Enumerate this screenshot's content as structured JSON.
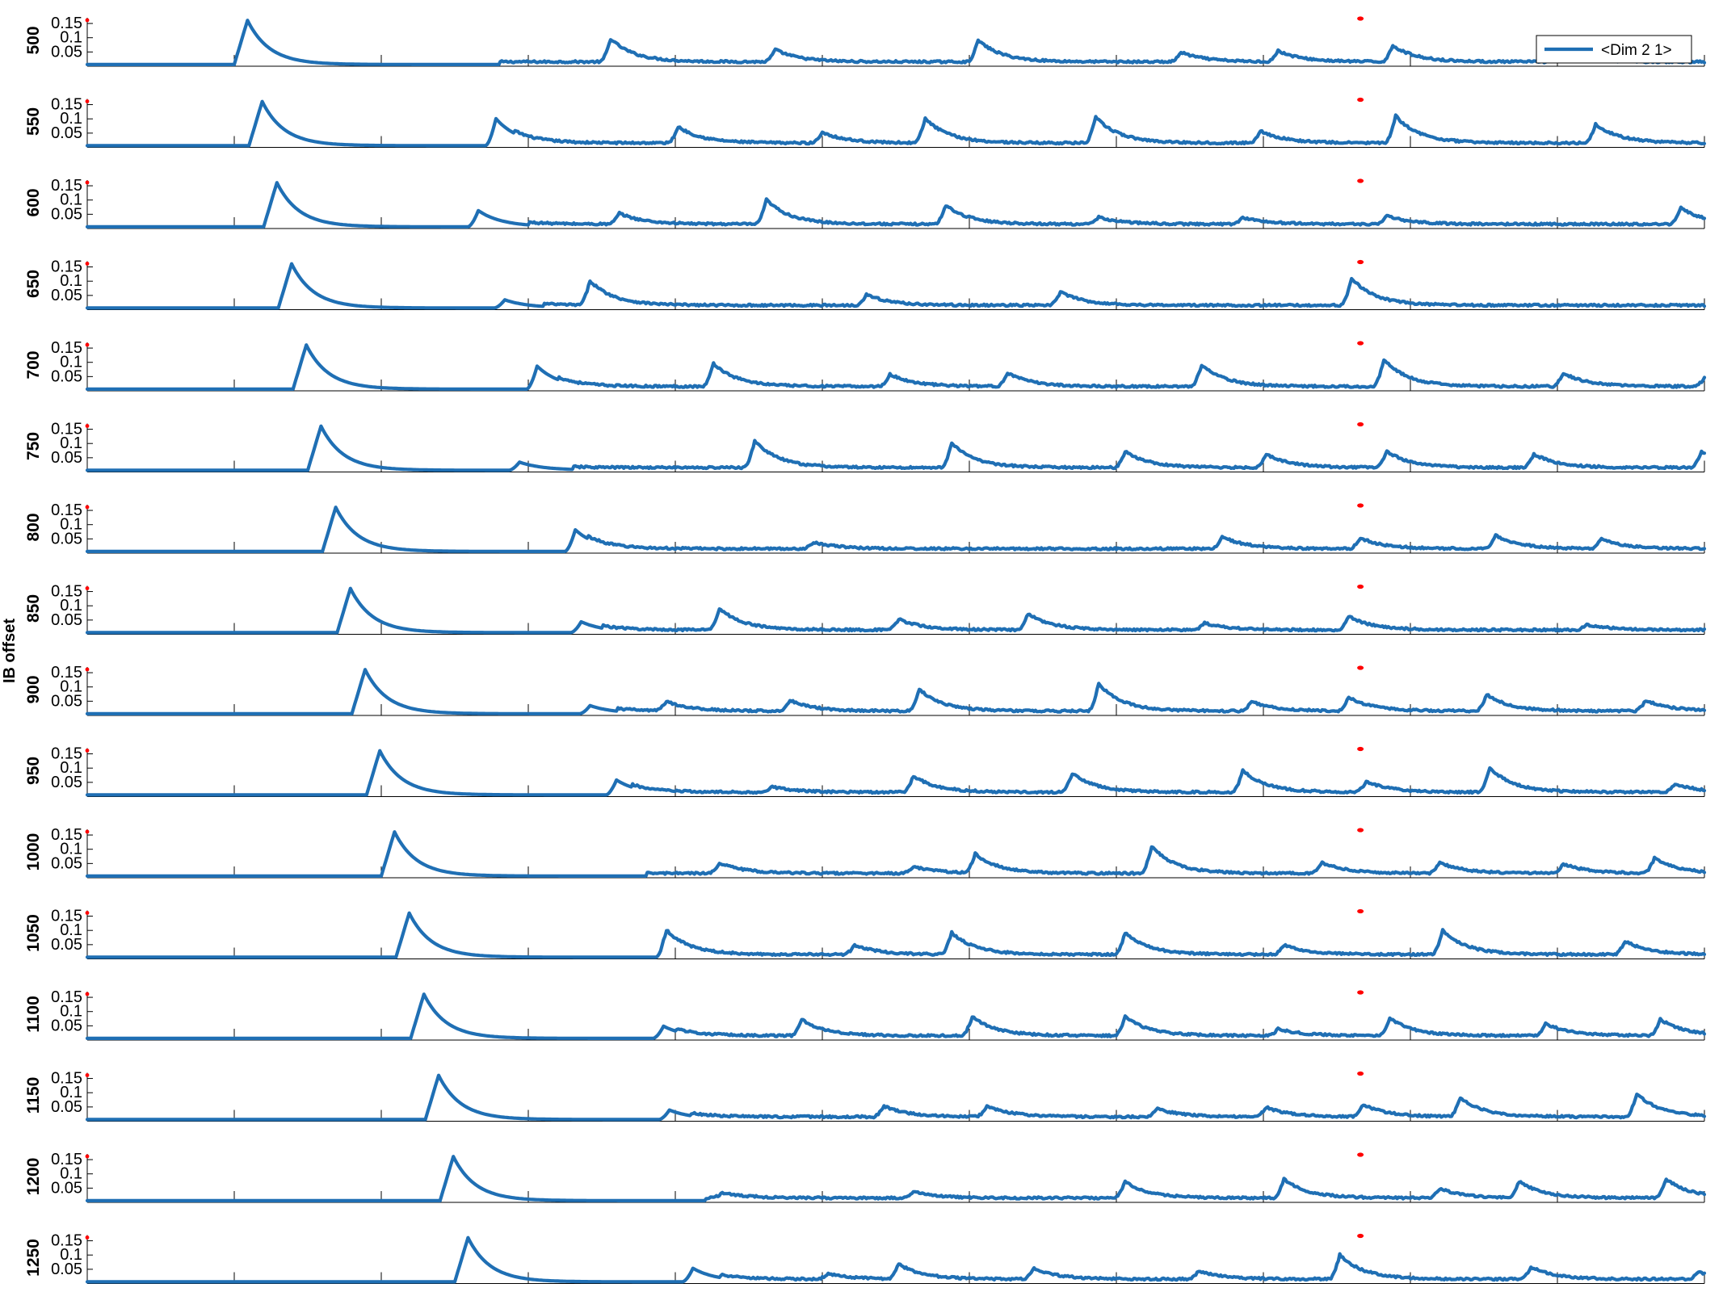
{
  "chart_data": {
    "type": "line",
    "ylabel": "IB offset",
    "legend": {
      "label": "<Dim 2 1>",
      "placement": "top-right"
    },
    "xlim": [
      0,
      5500
    ],
    "x_ticks": [
      "0",
      "500",
      "1000",
      "1500",
      "2000",
      "2500",
      "3000",
      "3500",
      "4000",
      "4500",
      "5000",
      "5500"
    ],
    "ylim": [
      0,
      0.17
    ],
    "y_ticks": [
      "0.15",
      "0.1",
      "0.05"
    ],
    "colors": {
      "series": "#1f6fb4",
      "marker": "#ff0000",
      "axis": "#000000"
    },
    "marker_x": 4330,
    "rows": [
      {
        "label": "500",
        "onset": 500,
        "peaks": [
          [
            1780,
            0.085
          ],
          [
            2340,
            0.045
          ],
          [
            3030,
            0.08
          ],
          [
            3720,
            0.035
          ],
          [
            4050,
            0.04
          ],
          [
            4440,
            0.06
          ],
          [
            5000,
            0.035
          ]
        ]
      },
      {
        "label": "550",
        "onset": 550,
        "peaks": [
          [
            1390,
            0.1
          ],
          [
            2010,
            0.06
          ],
          [
            2500,
            0.04
          ],
          [
            2850,
            0.09
          ],
          [
            3430,
            0.095
          ],
          [
            3990,
            0.045
          ],
          [
            4450,
            0.1
          ],
          [
            5130,
            0.07
          ]
        ]
      },
      {
        "label": "600",
        "onset": 600,
        "peaks": [
          [
            1330,
            0.06
          ],
          [
            1810,
            0.04
          ],
          [
            2310,
            0.09
          ],
          [
            2920,
            0.07
          ],
          [
            3440,
            0.025
          ],
          [
            3930,
            0.025
          ],
          [
            4420,
            0.03
          ],
          [
            5420,
            0.06
          ]
        ]
      },
      {
        "label": "650",
        "onset": 650,
        "peaks": [
          [
            1420,
            0.03
          ],
          [
            1710,
            0.09
          ],
          [
            2650,
            0.04
          ],
          [
            3310,
            0.05
          ],
          [
            4300,
            0.1
          ]
        ]
      },
      {
        "label": "700",
        "onset": 700,
        "peaks": [
          [
            1530,
            0.085
          ],
          [
            2130,
            0.085
          ],
          [
            2730,
            0.045
          ],
          [
            3130,
            0.05
          ],
          [
            3790,
            0.08
          ],
          [
            4410,
            0.1
          ],
          [
            5020,
            0.05
          ],
          [
            5500,
            0.03
          ]
        ]
      },
      {
        "label": "750",
        "onset": 750,
        "peaks": [
          [
            1470,
            0.03
          ],
          [
            2270,
            0.1
          ],
          [
            2940,
            0.09
          ],
          [
            3530,
            0.06
          ],
          [
            4010,
            0.05
          ],
          [
            4420,
            0.06
          ],
          [
            4920,
            0.05
          ],
          [
            5490,
            0.06
          ]
        ]
      },
      {
        "label": "800",
        "onset": 800,
        "peaks": [
          [
            1660,
            0.08
          ],
          [
            2470,
            0.025
          ],
          [
            3860,
            0.045
          ],
          [
            4330,
            0.04
          ],
          [
            4790,
            0.05
          ],
          [
            5150,
            0.035
          ]
        ]
      },
      {
        "label": "850",
        "onset": 850,
        "peaks": [
          [
            1680,
            0.04
          ],
          [
            2150,
            0.08
          ],
          [
            2760,
            0.04
          ],
          [
            3200,
            0.06
          ],
          [
            3800,
            0.025
          ],
          [
            4290,
            0.05
          ],
          [
            5100,
            0.02
          ]
        ]
      },
      {
        "label": "900",
        "onset": 900,
        "peaks": [
          [
            1710,
            0.03
          ],
          [
            1970,
            0.035
          ],
          [
            2390,
            0.04
          ],
          [
            2830,
            0.08
          ],
          [
            3440,
            0.1
          ],
          [
            3960,
            0.035
          ],
          [
            4290,
            0.05
          ],
          [
            4760,
            0.06
          ],
          [
            5300,
            0.04
          ]
        ]
      },
      {
        "label": "950",
        "onset": 950,
        "peaks": [
          [
            1800,
            0.055
          ],
          [
            2330,
            0.02
          ],
          [
            2810,
            0.06
          ],
          [
            3350,
            0.07
          ],
          [
            3930,
            0.08
          ],
          [
            4350,
            0.04
          ],
          [
            4770,
            0.09
          ],
          [
            5400,
            0.03
          ]
        ]
      },
      {
        "label": "1000",
        "onset": 1000,
        "peaks": [
          [
            2150,
            0.04
          ],
          [
            2810,
            0.025
          ],
          [
            3020,
            0.07
          ],
          [
            3620,
            0.1
          ],
          [
            4200,
            0.04
          ],
          [
            4600,
            0.04
          ],
          [
            5020,
            0.035
          ],
          [
            5330,
            0.055
          ]
        ]
      },
      {
        "label": "1050",
        "onset": 1050,
        "peaks": [
          [
            1970,
            0.09
          ],
          [
            2610,
            0.035
          ],
          [
            2940,
            0.08
          ],
          [
            3530,
            0.08
          ],
          [
            4070,
            0.035
          ],
          [
            4610,
            0.09
          ],
          [
            5230,
            0.05
          ]
        ]
      },
      {
        "label": "1100",
        "onset": 1100,
        "peaks": [
          [
            1960,
            0.045
          ],
          [
            2430,
            0.06
          ],
          [
            3010,
            0.07
          ],
          [
            3530,
            0.07
          ],
          [
            4050,
            0.025
          ],
          [
            4430,
            0.065
          ],
          [
            4960,
            0.045
          ],
          [
            5350,
            0.06
          ]
        ]
      },
      {
        "label": "1150",
        "onset": 1150,
        "peaks": [
          [
            1980,
            0.035
          ],
          [
            2710,
            0.04
          ],
          [
            3060,
            0.04
          ],
          [
            3640,
            0.03
          ],
          [
            4010,
            0.035
          ],
          [
            4340,
            0.045
          ],
          [
            4670,
            0.07
          ],
          [
            5270,
            0.085
          ]
        ]
      },
      {
        "label": "1200",
        "onset": 1200,
        "peaks": [
          [
            2160,
            0.02
          ],
          [
            2810,
            0.025
          ],
          [
            3530,
            0.06
          ],
          [
            4070,
            0.07
          ],
          [
            4600,
            0.035
          ],
          [
            4870,
            0.06
          ],
          [
            5370,
            0.07
          ]
        ]
      },
      {
        "label": "1250",
        "onset": 1250,
        "peaks": [
          [
            2060,
            0.05
          ],
          [
            2520,
            0.02
          ],
          [
            2760,
            0.055
          ],
          [
            3220,
            0.04
          ],
          [
            3780,
            0.03
          ],
          [
            4260,
            0.09
          ],
          [
            4910,
            0.045
          ],
          [
            5480,
            0.025
          ]
        ]
      }
    ]
  }
}
